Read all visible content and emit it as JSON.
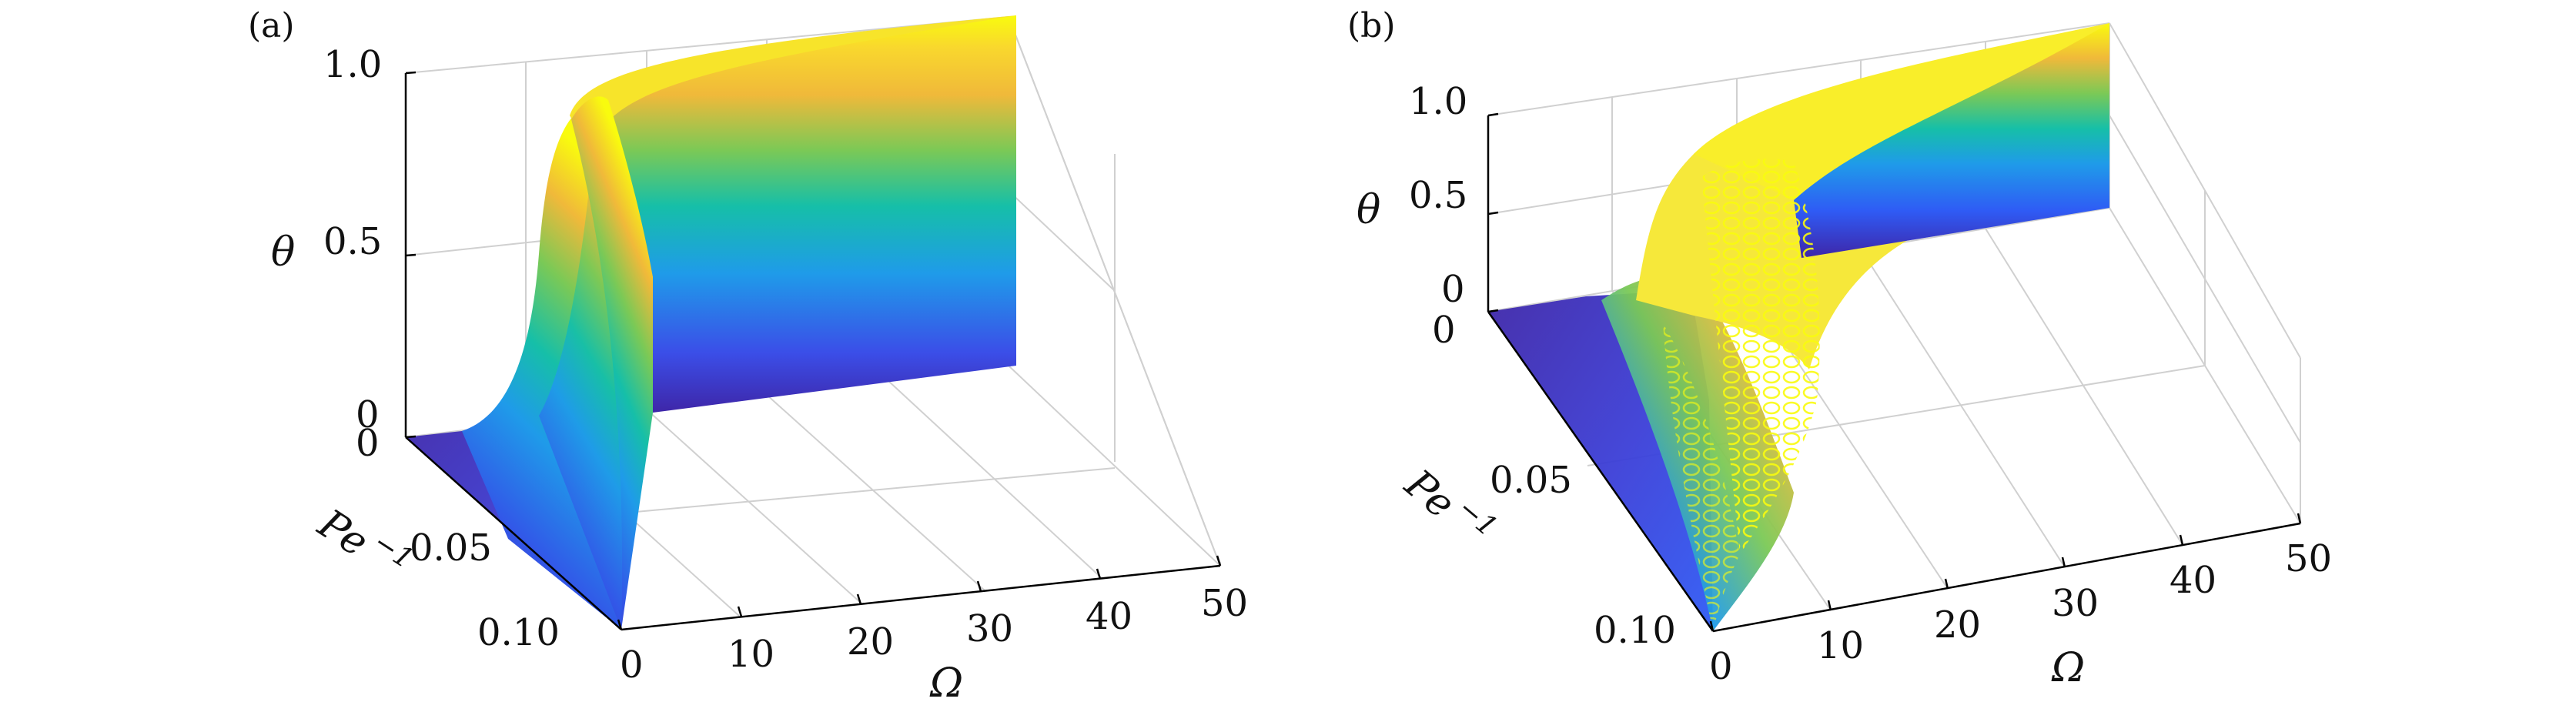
{
  "chart_data": [
    {
      "type": "surface",
      "panel_label": "(a)",
      "zlabel": "θ",
      "xlabel": "Ω",
      "ylabel_base": "Pe",
      "ylabel_exp": "−1",
      "x_ticks": [
        "0",
        "10",
        "20",
        "30",
        "40",
        "50"
      ],
      "y_ticks": [
        "0",
        "0.05",
        "0.10"
      ],
      "z_ticks": [
        "0",
        "0.5",
        "1.0"
      ],
      "xlim": [
        0,
        50
      ],
      "ylim": [
        0,
        0.1
      ],
      "zlim": [
        0,
        1
      ],
      "grid": true,
      "colormap": "parula",
      "marker": "dot",
      "colors": [
        "#3e26a8",
        "#2f5bf5",
        "#1f9be9",
        "#16bfa8",
        "#7bc956",
        "#f0b93a",
        "#f9d82d",
        "#f9fb0e"
      ],
      "description_values": {
        "theta_at_omega_0": 0,
        "transition_omega_range": [
          0,
          3
        ],
        "theta_plateau": 1.0
      }
    },
    {
      "type": "surface",
      "panel_label": "(b)",
      "zlabel": "θ",
      "xlabel": "Ω",
      "ylabel_base": "Pe",
      "ylabel_exp": "−1",
      "x_ticks": [
        "0",
        "10",
        "20",
        "30",
        "40",
        "50"
      ],
      "y_ticks": [
        "0",
        "0.05",
        "0.10"
      ],
      "z_ticks": [
        "0",
        "0.5",
        "1.0"
      ],
      "xlim": [
        0,
        50
      ],
      "ylim": [
        0,
        0.1
      ],
      "zlim": [
        0,
        1
      ],
      "grid": true,
      "colormap": "parula",
      "marker": "circle",
      "colors": [
        "#3e26a8",
        "#2f5bf5",
        "#1f9be9",
        "#16bfa8",
        "#7bc956",
        "#f0b93a",
        "#f9d82d",
        "#f9fb0e"
      ]
    }
  ]
}
